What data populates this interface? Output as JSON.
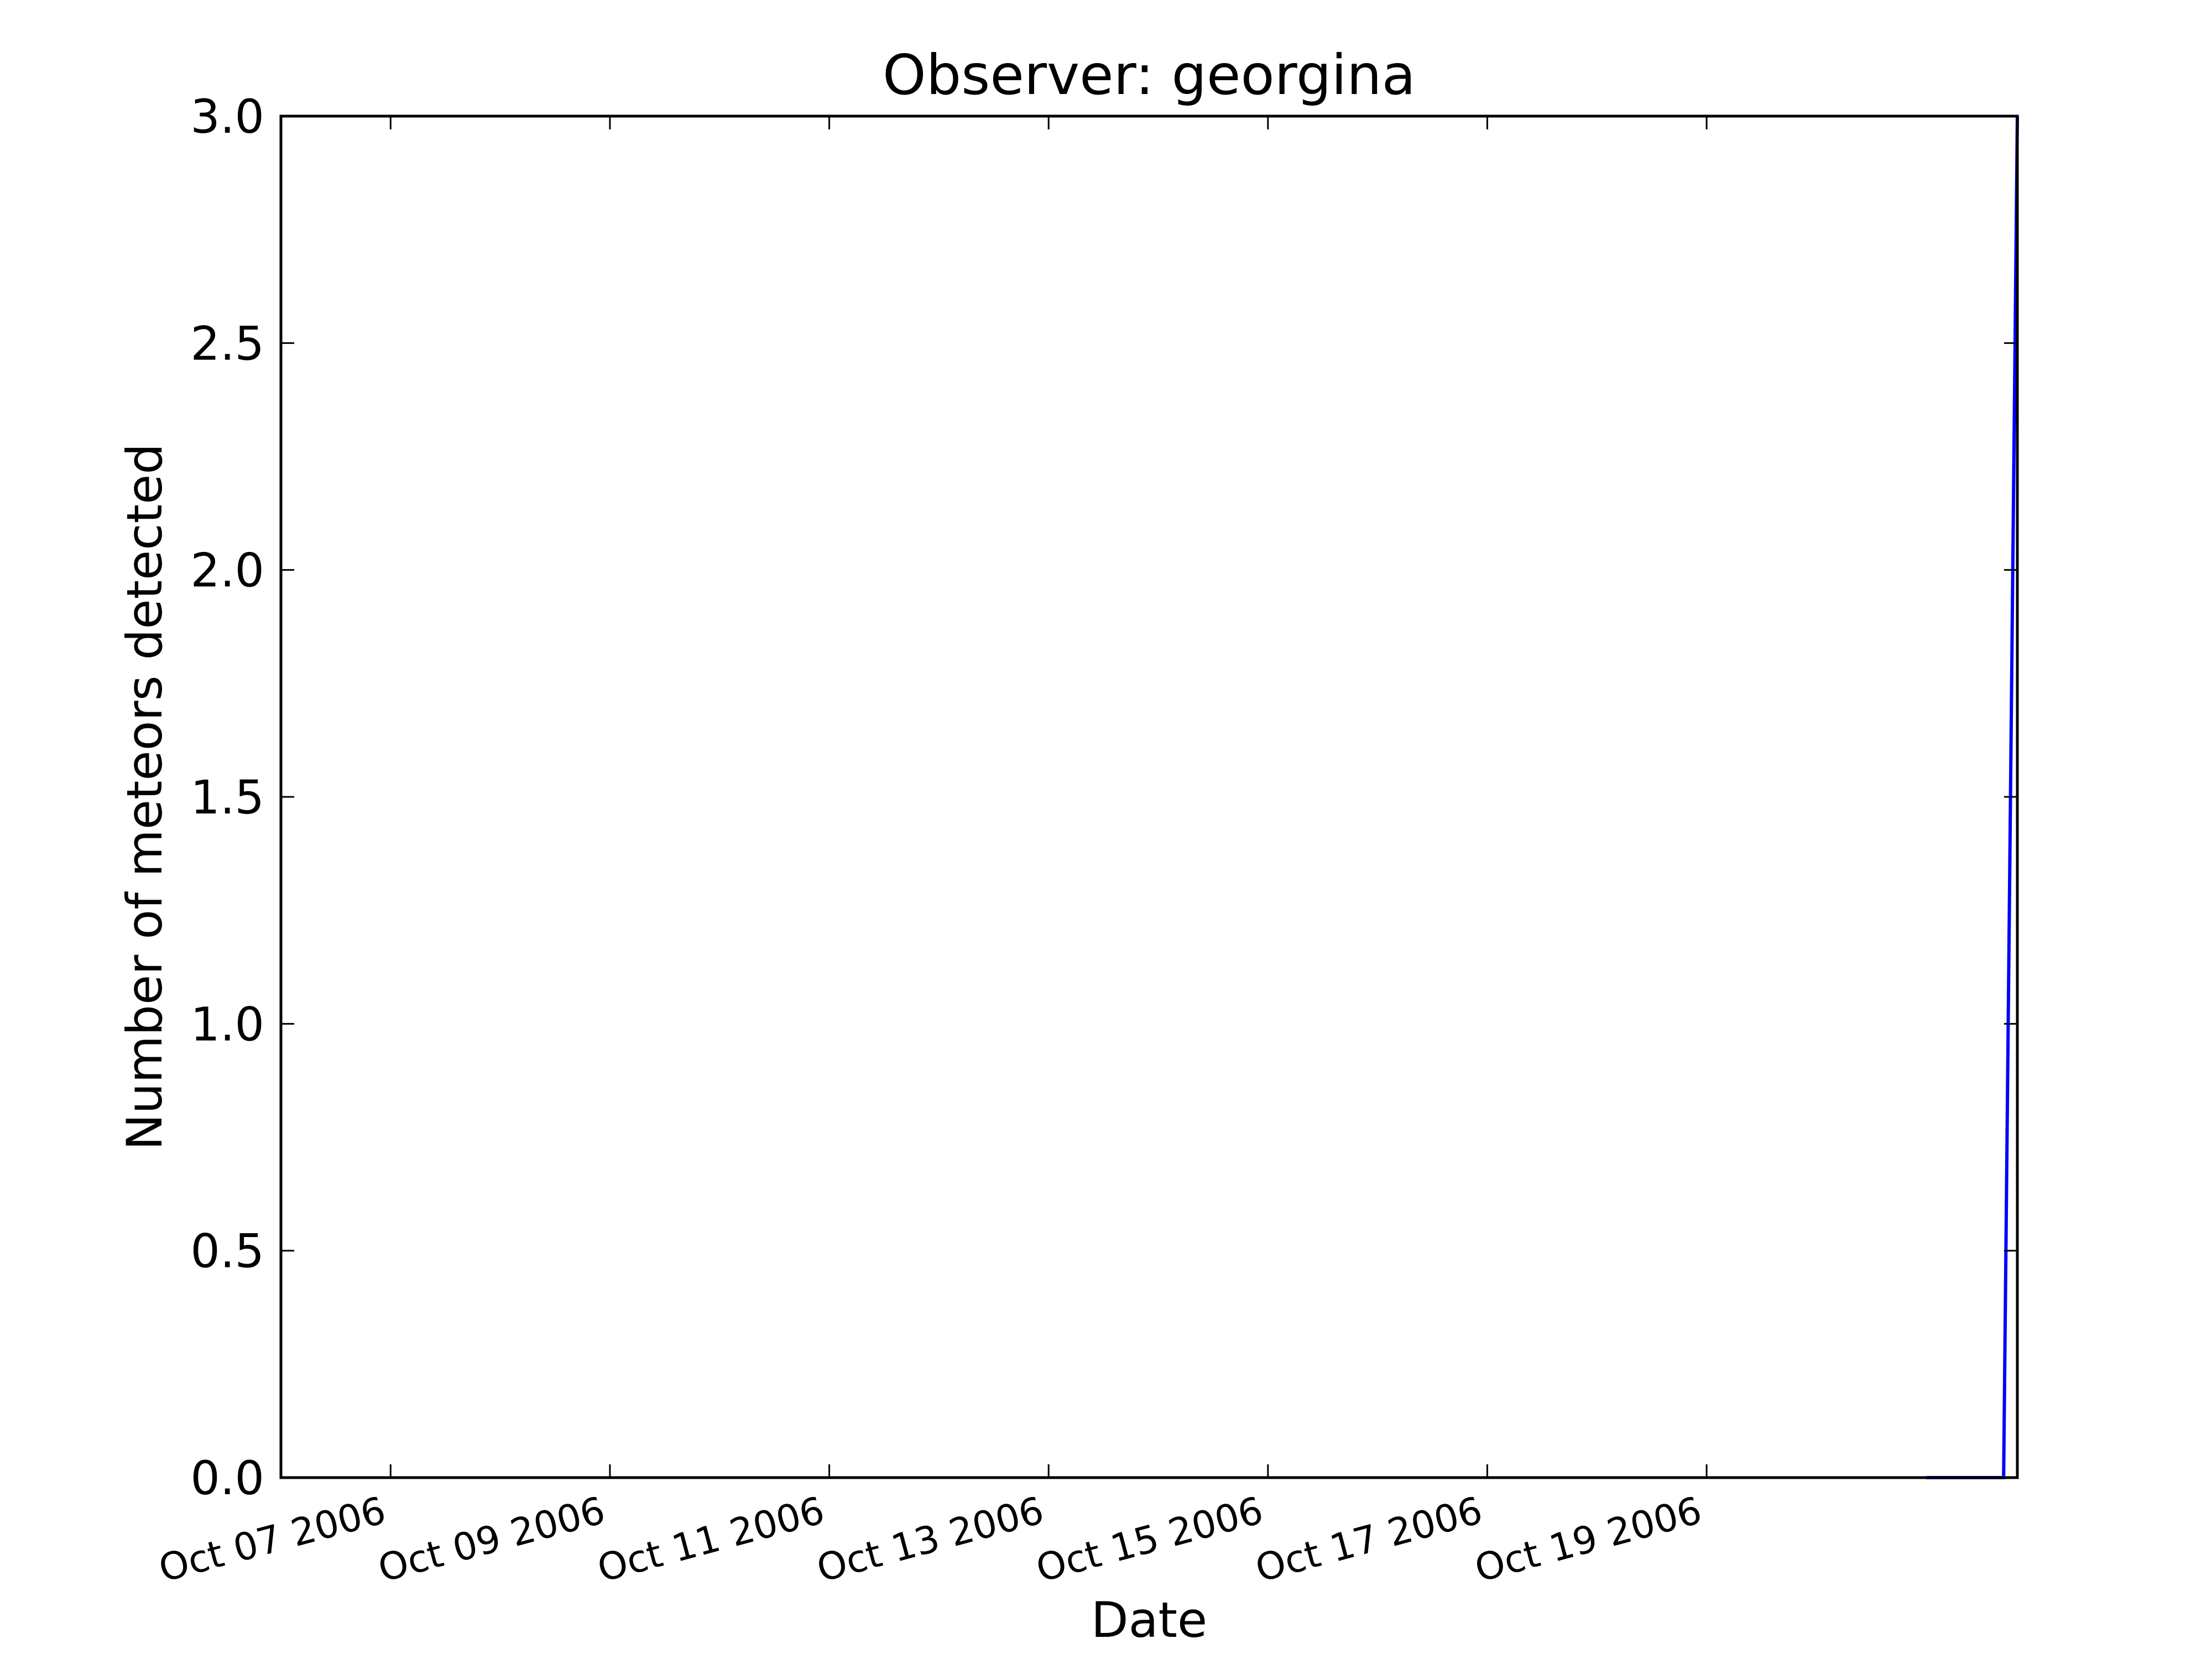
{
  "chart_data": {
    "type": "line",
    "title": "Observer: georgina",
    "xlabel": "Date",
    "ylabel": "Number of meteors detected",
    "x_axis_type": "date",
    "xlim": [
      "2006-10-06T00:00",
      "2006-10-21T20:00"
    ],
    "ylim": [
      0,
      3
    ],
    "y_ticks": [
      0.0,
      0.5,
      1.0,
      1.5,
      2.0,
      2.5,
      3.0
    ],
    "y_tick_labels": [
      "0.0",
      "0.5",
      "1.0",
      "1.5",
      "2.0",
      "2.5",
      "3.0"
    ],
    "x_ticks": [
      "2006-10-07",
      "2006-10-09",
      "2006-10-11",
      "2006-10-13",
      "2006-10-15",
      "2006-10-17",
      "2006-10-19"
    ],
    "x_tick_labels": [
      "Oct 07 2006",
      "Oct 09 2006",
      "Oct 11 2006",
      "Oct 13 2006",
      "Oct 15 2006",
      "Oct 17 2006",
      "Oct 19 2006"
    ],
    "grid": false,
    "series": [
      {
        "color": "#0000ff",
        "x": [
          "2006-10-21T00:00",
          "2006-10-21T15:00",
          "2006-10-21T17:00",
          "2006-10-21T20:00"
        ],
        "y": [
          0,
          0,
          0,
          3
        ]
      }
    ]
  }
}
